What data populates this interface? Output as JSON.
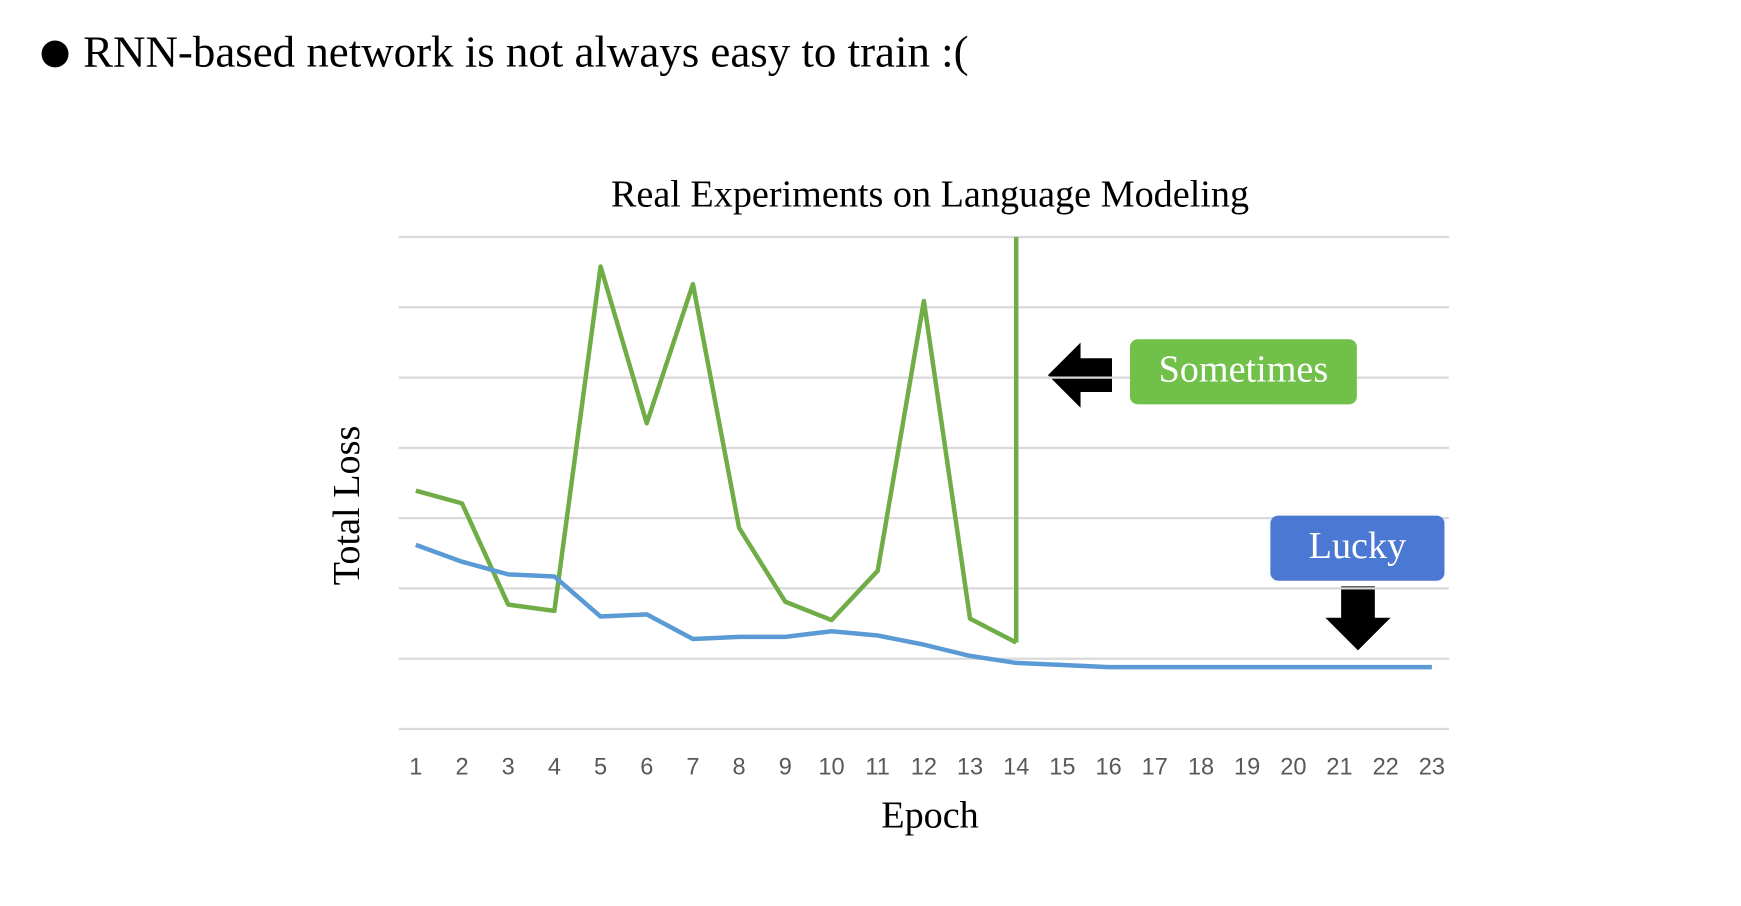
{
  "header": {
    "text": "RNN-based network is not always easy to train :("
  },
  "chart_data": {
    "type": "line",
    "title": "Real Experiments on Language Modeling",
    "x_label": "Epoch",
    "y_label": "Total Loss",
    "x": [
      1,
      2,
      3,
      4,
      5,
      6,
      7,
      8,
      9,
      10,
      11,
      12,
      13,
      14,
      15,
      16,
      17,
      18,
      19,
      20,
      21,
      22,
      23
    ],
    "xticks": [
      1,
      2,
      3,
      4,
      5,
      6,
      7,
      8,
      9,
      10,
      11,
      12,
      13,
      14,
      15,
      16,
      17,
      18,
      19,
      20,
      21,
      22,
      23
    ],
    "xlim": [
      0.63,
      23.37
    ],
    "ylim": [
      0,
      7
    ],
    "yticks": [
      0,
      1,
      2,
      3,
      4,
      5,
      6,
      7
    ],
    "grid": true,
    "series": [
      {
        "color": "#70ad47",
        "values": [
          3.39,
          3.21,
          1.77,
          1.68,
          6.58,
          4.35,
          6.33,
          2.86,
          1.81,
          1.55,
          2.25,
          6.09,
          1.57,
          1.23,
          null,
          null,
          null,
          null,
          null,
          null,
          null,
          null,
          null
        ]
      },
      {
        "color": "#5b9bd5",
        "values": [
          2.62,
          2.38,
          2.2,
          2.17,
          1.6,
          1.63,
          1.28,
          1.31,
          1.31,
          1.39,
          1.33,
          1.2,
          1.04,
          0.94,
          0.91,
          0.88,
          0.88,
          0.88,
          0.88,
          0.88,
          0.88,
          0.88,
          0.88
        ]
      }
    ],
    "annotations": [
      {
        "text": "Sometimes",
        "color": "#70c04a"
      },
      {
        "text": "Lucky",
        "color": "#4b78d2"
      }
    ]
  }
}
